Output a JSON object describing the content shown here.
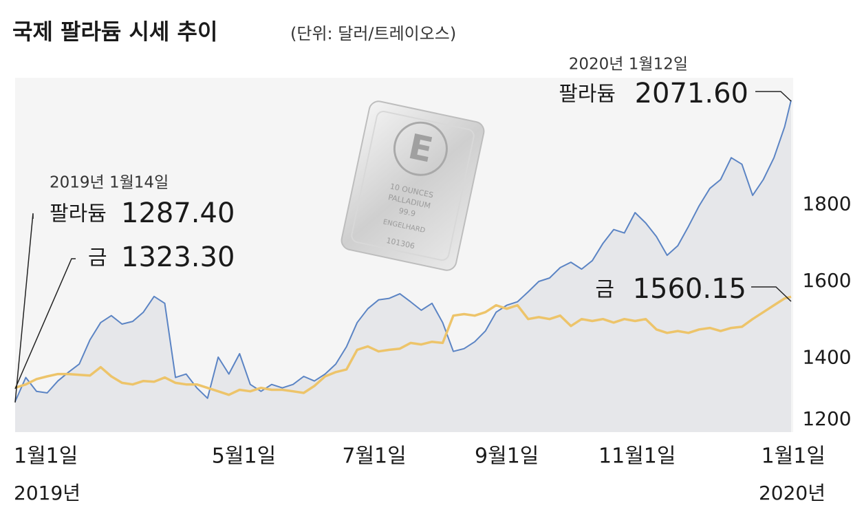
{
  "chart_data": {
    "type": "line",
    "title": "국제 팔라듐 시세 추이",
    "subtitle": "(단위: 달러/트레이오스)",
    "x": [
      13,
      18,
      23,
      28,
      33,
      38,
      43,
      48,
      53,
      58,
      63,
      68,
      73,
      78,
      83,
      88,
      93,
      98,
      103,
      108,
      113,
      118,
      123,
      128,
      133,
      138,
      143,
      148,
      153,
      158,
      163,
      168,
      173,
      178,
      183,
      188,
      193,
      198,
      203,
      208,
      213,
      218,
      223,
      228,
      233,
      238,
      243,
      248,
      253,
      258,
      263,
      268,
      273,
      278,
      283,
      288,
      293,
      298,
      303,
      308,
      313,
      318,
      323,
      328,
      333,
      338,
      343,
      348,
      353,
      358,
      363,
      368,
      373,
      376
    ],
    "xlim": [
      13,
      376
    ],
    "xticks": [
      {
        "value": 0,
        "label": "1월1일"
      },
      {
        "value": 120,
        "label": "5월1일"
      },
      {
        "value": 181,
        "label": "7월1일"
      },
      {
        "value": 243,
        "label": "9월1일"
      },
      {
        "value": 304,
        "label": "11월1일"
      },
      {
        "value": 365,
        "label": "1월1일"
      }
    ],
    "year_labels": [
      "2019년",
      "2020년"
    ],
    "ylim": [
      1200,
      2130
    ],
    "yticks": [
      1200,
      1400,
      1600,
      1800
    ],
    "start_date": "2019년 1월14일",
    "end_date": "2020년 1월12일",
    "series": [
      {
        "name": "팔라듐",
        "color": "#5b84c4",
        "area_color": "#e6e7ea",
        "start_label": "1287.40",
        "end_label": "2071.60",
        "values": [
          1287.4,
          1350,
          1314,
          1310,
          1341,
          1364,
          1385,
          1448,
          1493,
          1511,
          1489,
          1496,
          1520,
          1561,
          1543,
          1350,
          1359,
          1323,
          1296,
          1403,
          1359,
          1412,
          1332,
          1314,
          1332,
          1323,
          1332,
          1353,
          1341,
          1359,
          1385,
          1430,
          1493,
          1529,
          1552,
          1556,
          1568,
          1547,
          1525,
          1543,
          1493,
          1418,
          1425,
          1443,
          1471,
          1520,
          1538,
          1547,
          1573,
          1600,
          1609,
          1636,
          1650,
          1632,
          1654,
          1699,
          1735,
          1726,
          1779,
          1752,
          1717,
          1668,
          1693,
          1743,
          1797,
          1842,
          1865,
          1922,
          1905,
          1824,
          1865,
          1922,
          2003,
          2071.6
        ]
      },
      {
        "name": "금",
        "color": "#edc46a",
        "start_label": "1323.30",
        "end_label": "1560.15",
        "values": [
          1323.3,
          1332,
          1346,
          1353,
          1359,
          1359,
          1357,
          1355,
          1377,
          1353,
          1336,
          1332,
          1341,
          1339,
          1350,
          1336,
          1332,
          1332,
          1323,
          1314,
          1305,
          1318,
          1314,
          1323,
          1318,
          1318,
          1314,
          1310,
          1328,
          1353,
          1364,
          1371,
          1422,
          1431,
          1418,
          1422,
          1425,
          1440,
          1436,
          1443,
          1440,
          1511,
          1515,
          1511,
          1520,
          1538,
          1529,
          1538,
          1502,
          1507,
          1502,
          1511,
          1484,
          1502,
          1497,
          1502,
          1493,
          1502,
          1497,
          1502,
          1475,
          1466,
          1471,
          1466,
          1475,
          1479,
          1471,
          1479,
          1482,
          1502,
          1520,
          1538,
          1556,
          1560.15
        ]
      }
    ],
    "bar_image_text": [
      "10 OUNCES",
      "PALLADIUM",
      "99.9",
      "ENGELHARD",
      "101306"
    ]
  }
}
